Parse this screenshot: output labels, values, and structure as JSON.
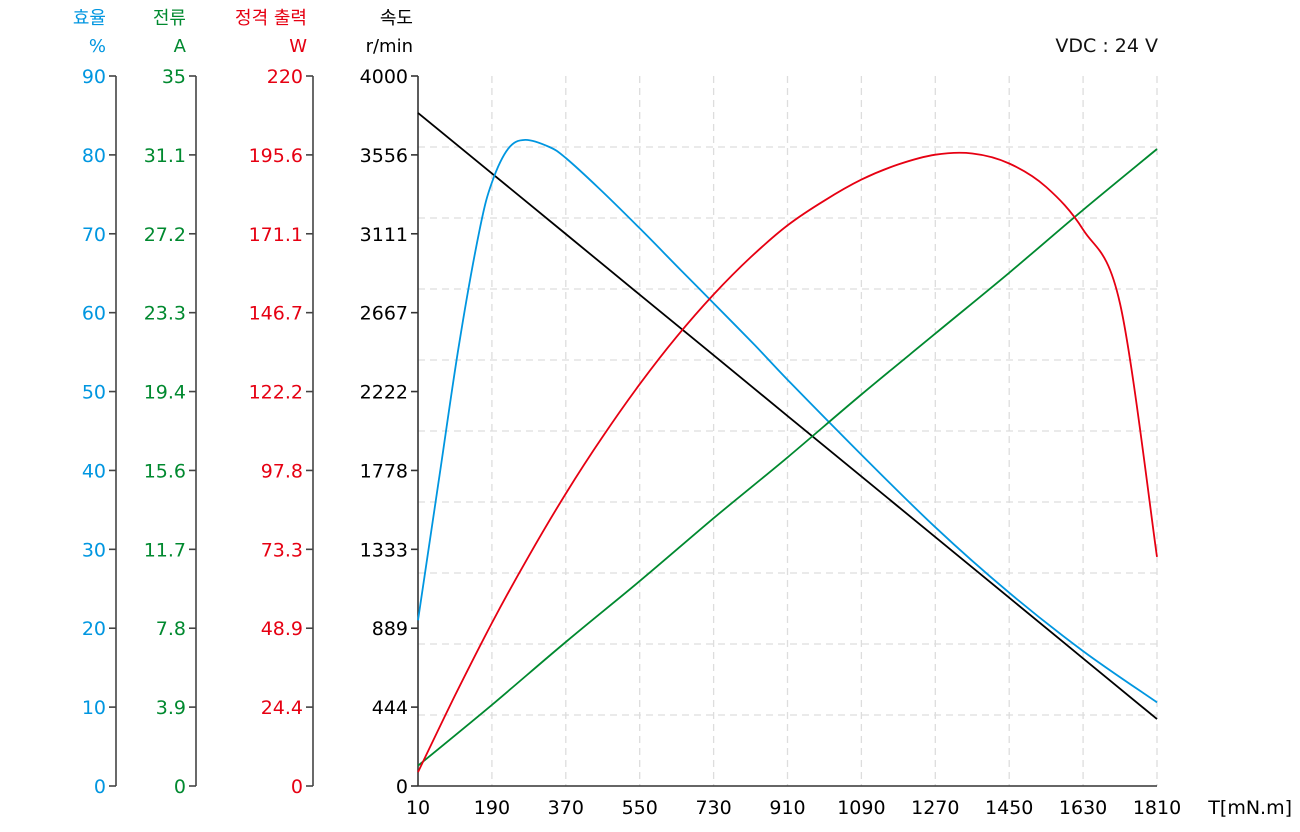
{
  "annotation": "VDC : 24 V",
  "axes": {
    "efficiency": {
      "title": "효율",
      "unit": "%",
      "color": "#0096E0",
      "ticks": [
        "0",
        "10",
        "20",
        "30",
        "40",
        "50",
        "60",
        "70",
        "80",
        "90"
      ]
    },
    "current": {
      "title": "전류",
      "unit": "A",
      "color": "#00892F",
      "ticks": [
        "0",
        "3.9",
        "7.8",
        "11.7",
        "15.6",
        "19.4",
        "23.3",
        "27.2",
        "31.1",
        "35"
      ]
    },
    "power": {
      "title": "정격 출력",
      "unit": "W",
      "color": "#E60012",
      "ticks": [
        "0",
        "24.4",
        "48.9",
        "73.3",
        "97.8",
        "122.2",
        "146.7",
        "171.1",
        "195.6",
        "220"
      ]
    },
    "speed": {
      "title": "속도",
      "unit": "r/min",
      "color": "#000000",
      "ticks": [
        "0",
        "444",
        "889",
        "1333",
        "1778",
        "2222",
        "2667",
        "3111",
        "3556",
        "4000"
      ]
    },
    "torque": {
      "label": "T[mN.m]",
      "ticks": [
        "10",
        "190",
        "370",
        "550",
        "730",
        "910",
        "1090",
        "1270",
        "1450",
        "1630",
        "1810"
      ]
    }
  },
  "chart_data": {
    "type": "line",
    "title": "",
    "annotation": "VDC : 24 V",
    "xlabel": "T[mN.m]",
    "x_ticks": [
      10,
      190,
      370,
      550,
      730,
      910,
      1090,
      1270,
      1450,
      1630,
      1810
    ],
    "xlim": [
      10,
      1810
    ],
    "grid": true,
    "y_axes": [
      {
        "name": "효율",
        "unit": "%",
        "ylim": [
          0,
          90
        ],
        "color": "#0096E0"
      },
      {
        "name": "전류",
        "unit": "A",
        "ylim": [
          0,
          35
        ],
        "color": "#00892F"
      },
      {
        "name": "정격 출력",
        "unit": "W",
        "ylim": [
          0,
          220
        ],
        "color": "#E60012"
      },
      {
        "name": "속도",
        "unit": "r/min",
        "ylim": [
          0,
          4000
        ],
        "color": "#000000"
      }
    ],
    "series": [
      {
        "name": "속도 (r/min)",
        "axis": "speed",
        "color": "#000000",
        "x": [
          10,
          190,
          370,
          550,
          730,
          910,
          1090,
          1270,
          1450,
          1630,
          1810
        ],
        "values": [
          3792,
          3451,
          3110,
          2768,
          2427,
          2085,
          1744,
          1402,
          1061,
          719,
          377
        ]
      },
      {
        "name": "효율 (%)",
        "axis": "efficiency",
        "color": "#0096E0",
        "x": [
          10,
          60,
          110,
          160,
          190,
          230,
          271,
          330,
          370,
          450,
          550,
          650,
          730,
          830,
          910,
          1090,
          1270,
          1450,
          1630,
          1810
        ],
        "values": [
          21.0,
          38.5,
          56.0,
          70.5,
          76.5,
          80.8,
          81.9,
          81.0,
          79.6,
          75.8,
          70.7,
          65.4,
          61.2,
          55.9,
          51.5,
          42.0,
          32.8,
          24.5,
          17.1,
          10.6
        ]
      },
      {
        "name": "전류 (A)",
        "axis": "current",
        "color": "#00892F",
        "x": [
          10,
          190,
          370,
          550,
          730,
          910,
          1090,
          1270,
          1450,
          1630,
          1810
        ],
        "values": [
          1.0,
          4.0,
          7.1,
          10.1,
          13.2,
          16.2,
          19.3,
          22.3,
          25.3,
          28.4,
          31.4
        ]
      },
      {
        "name": "정격 출력 (W)",
        "axis": "power",
        "color": "#E60012",
        "x": [
          10,
          100,
          190,
          280,
          370,
          460,
          550,
          640,
          730,
          820,
          910,
          1001,
          1090,
          1180,
          1270,
          1360,
          1450,
          1540,
          1630,
          1720,
          1810
        ],
        "values": [
          4.3,
          28.0,
          50.5,
          71.3,
          90.6,
          108.3,
          124.5,
          139.2,
          152.3,
          163.8,
          173.7,
          181.5,
          187.9,
          192.6,
          195.6,
          196.0,
          192.9,
          185.6,
          172.4,
          149.5,
          71.0
        ]
      }
    ]
  }
}
